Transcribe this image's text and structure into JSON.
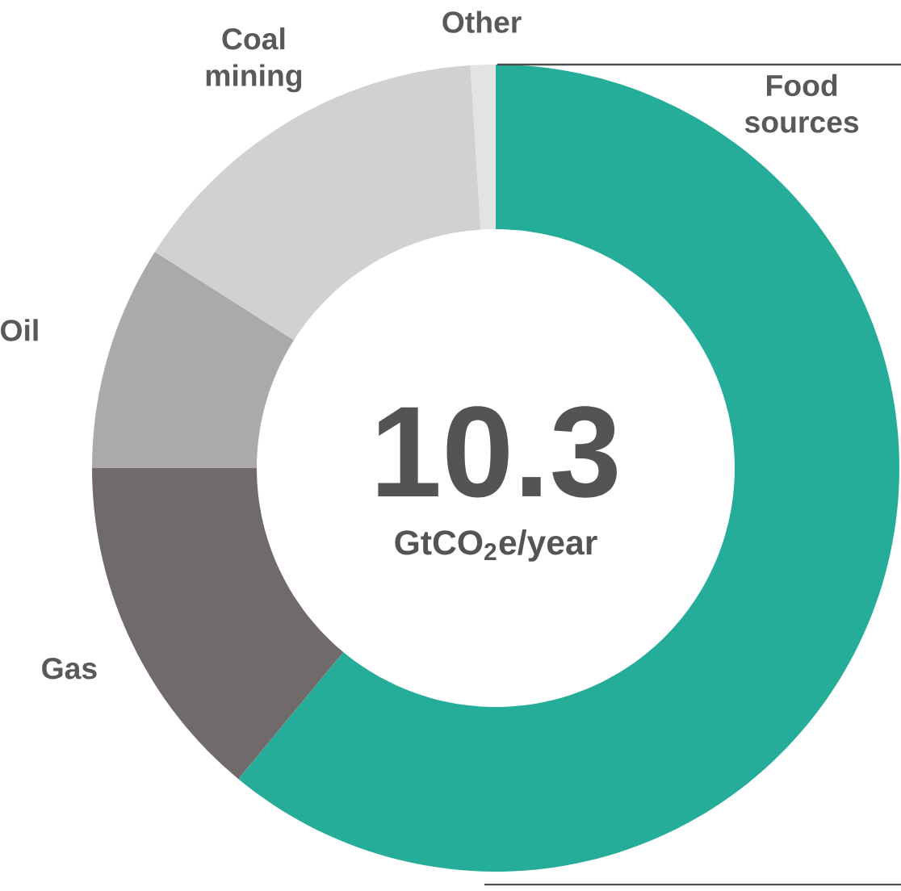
{
  "chart_data": {
    "type": "donut",
    "categories": [
      "Food sources",
      "Gas",
      "Oil",
      "Coal mining",
      "Other"
    ],
    "values": [
      61,
      14,
      9,
      15,
      1
    ],
    "colors": [
      "#26ad9a",
      "#706a6a",
      "#aca9a9",
      "#d2d0d0",
      "#e4e3e3"
    ],
    "annotations": [
      "10.3",
      "GtCO$_{2}$e/year"
    ]
  }
}
